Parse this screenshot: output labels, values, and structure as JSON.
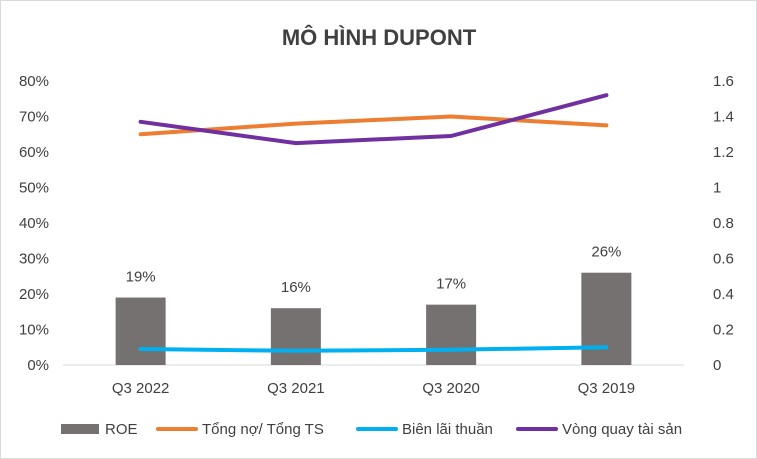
{
  "chart_data": {
    "type": "bar+line",
    "title": "MÔ HÌNH DUPONT",
    "categories": [
      "Q3 2022",
      "Q3 2021",
      "Q3 2020",
      "Q3 2019"
    ],
    "y_left": {
      "min": 0,
      "max": 0.8,
      "ticks": [
        "0%",
        "10%",
        "20%",
        "30%",
        "40%",
        "50%",
        "60%",
        "70%",
        "80%"
      ]
    },
    "y_right": {
      "min": 0,
      "max": 1.6,
      "ticks": [
        "0",
        "0.2",
        "0.4",
        "0.6",
        "0.8",
        "1",
        "1.2",
        "1.4",
        "1.6"
      ]
    },
    "series": [
      {
        "name": "ROE",
        "kind": "bar",
        "axis": "left",
        "color": "#767171",
        "values": [
          0.19,
          0.16,
          0.17,
          0.26
        ],
        "labels": [
          "19%",
          "16%",
          "17%",
          "26%"
        ]
      },
      {
        "name": "Tổng nợ/ Tổng TS",
        "kind": "line",
        "axis": "left",
        "color": "#ed7d31",
        "values": [
          0.65,
          0.68,
          0.7,
          0.675
        ]
      },
      {
        "name": "Biên lãi thuần",
        "kind": "line",
        "axis": "left",
        "color": "#00b0f0",
        "values": [
          0.045,
          0.04,
          0.043,
          0.05
        ]
      },
      {
        "name": "Vòng quay tài sản",
        "kind": "line",
        "axis": "right",
        "color": "#7030a0",
        "values": [
          1.37,
          1.25,
          1.29,
          1.52
        ]
      }
    ],
    "grid": false,
    "legend": "bottom"
  }
}
